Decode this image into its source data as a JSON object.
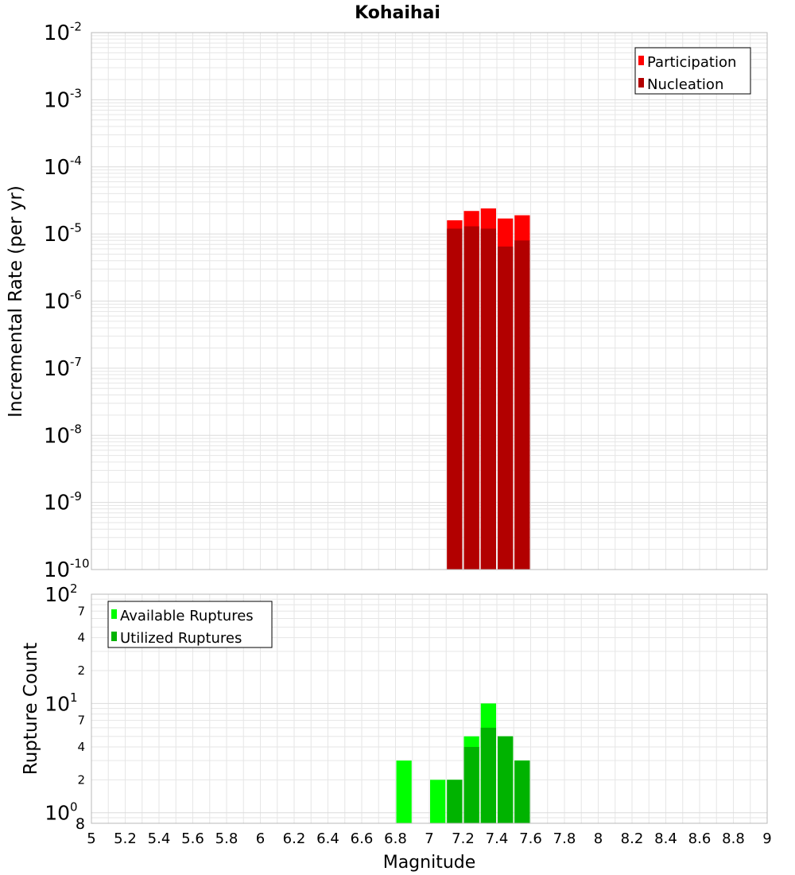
{
  "title": "Kohaihai",
  "colors": {
    "participation": "#ff0000",
    "nucleation": "#b20000",
    "available": "#00ff00",
    "utilized": "#00b300",
    "grid": "#e6e6e6",
    "frame": "#b8b8b8"
  },
  "chart_data": [
    {
      "type": "bar",
      "panel": "top",
      "title": "Kohaihai",
      "xlabel": "Magnitude",
      "ylabel": "Incremental Rate (per yr)",
      "yscale": "log",
      "xlim": [
        5,
        9
      ],
      "ylim": [
        1e-10,
        0.01
      ],
      "grid": true,
      "legend_position": "top-right",
      "y_ticks": [
        {
          "base": "10",
          "exp": "-10"
        },
        {
          "base": "10",
          "exp": "-9"
        },
        {
          "base": "10",
          "exp": "-8"
        },
        {
          "base": "10",
          "exp": "-7"
        },
        {
          "base": "10",
          "exp": "-6"
        },
        {
          "base": "10",
          "exp": "-5"
        },
        {
          "base": "10",
          "exp": "-4"
        },
        {
          "base": "10",
          "exp": "-3"
        },
        {
          "base": "10",
          "exp": "-2"
        }
      ],
      "bin_width": 0.1,
      "series": [
        {
          "name": "Participation",
          "x": [
            7.15,
            7.25,
            7.35,
            7.45,
            7.55
          ],
          "values": [
            1.6e-05,
            2.2e-05,
            2.4e-05,
            1.7e-05,
            1.9e-05
          ]
        },
        {
          "name": "Nucleation",
          "x": [
            7.15,
            7.25,
            7.35,
            7.45,
            7.55
          ],
          "values": [
            1.2e-05,
            1.3e-05,
            1.2e-05,
            6.5e-06,
            8e-06
          ]
        }
      ]
    },
    {
      "type": "bar",
      "panel": "bottom",
      "xlabel": "Magnitude",
      "ylabel": "Rupture Count",
      "yscale": "log",
      "xlim": [
        5,
        9
      ],
      "ylim": [
        0.8,
        100
      ],
      "grid": true,
      "legend_position": "top-left",
      "x_ticks": [
        "5",
        "5.2",
        "5.4",
        "5.6",
        "5.8",
        "6",
        "6.2",
        "6.4",
        "6.6",
        "6.8",
        "7",
        "7.2",
        "7.4",
        "7.6",
        "7.8",
        "8",
        "8.2",
        "8.4",
        "8.6",
        "8.8",
        "9"
      ],
      "y_major_ticks": [
        {
          "base": "10",
          "exp": "0"
        },
        {
          "base": "10",
          "exp": "1"
        },
        {
          "base": "10",
          "exp": "2"
        }
      ],
      "y_minor_tick_labels": [
        "8",
        "2",
        "4",
        "7",
        "2",
        "4",
        "7"
      ],
      "bin_width": 0.1,
      "series": [
        {
          "name": "Available Ruptures",
          "x": [
            6.85,
            7.05,
            7.15,
            7.25,
            7.35,
            7.45,
            7.55
          ],
          "values": [
            3,
            2,
            2,
            5,
            10,
            5,
            3
          ]
        },
        {
          "name": "Utilized Ruptures",
          "x": [
            6.85,
            7.05,
            7.15,
            7.25,
            7.35,
            7.45,
            7.55
          ],
          "values": [
            0,
            0,
            2,
            4,
            6,
            5,
            3
          ]
        }
      ]
    }
  ]
}
